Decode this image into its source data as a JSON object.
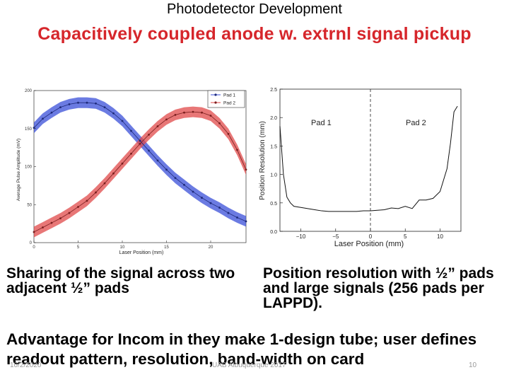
{
  "slide": {
    "header": "Photodetector Development",
    "title": "Capacitively coupled anode w. extrnl signal pickup",
    "caption_left": "Sharing of the signal across two adjacent ½” pads",
    "caption_right": "Position resolution with ½” pads and large signals (256 pads per LAPPD).",
    "bottom_text": "Advantage for Incom in they make 1-design tube; user defines readout pattern, resolution, band-width on card",
    "footer_date": "10/2/2020",
    "footer_center": "UAB Albuquerque 2017",
    "page_number": "10"
  },
  "colors": {
    "title": "#d6262b",
    "pad1": "#3a4fd8",
    "pad2": "#e0494a"
  },
  "chart_data": [
    {
      "type": "line",
      "xlabel": "Laser Position (mm)",
      "ylabel": "Average Pulse Amplitude (mV)",
      "xlim": [
        0,
        24
      ],
      "ylim": [
        0,
        200
      ],
      "xticks": [
        "0",
        "5",
        "10",
        "15",
        "20"
      ],
      "yticks": [
        "0",
        "50",
        "100",
        "150",
        "200"
      ],
      "legend_position": "top-right",
      "grid": false,
      "series": [
        {
          "name": "Pad 1",
          "x": [
            0,
            1,
            2,
            3,
            4,
            5,
            6,
            7,
            8,
            9,
            10,
            11,
            12,
            13,
            14,
            15,
            16,
            17,
            18,
            19,
            20,
            21,
            22,
            23,
            24
          ],
          "y": [
            151,
            163,
            171,
            178,
            182,
            184,
            184,
            183,
            178,
            170,
            160,
            147,
            134,
            121,
            108,
            96,
            85,
            76,
            67,
            59,
            52,
            46,
            39,
            33,
            28
          ]
        },
        {
          "name": "Pad 2",
          "x": [
            0,
            1,
            2,
            3,
            4,
            5,
            6,
            7,
            8,
            9,
            10,
            11,
            12,
            13,
            14,
            15,
            16,
            17,
            18,
            19,
            20,
            21,
            22,
            23,
            24
          ],
          "y": [
            14,
            20,
            26,
            32,
            39,
            47,
            55,
            66,
            78,
            91,
            104,
            117,
            130,
            142,
            153,
            162,
            168,
            171,
            172,
            171,
            167,
            157,
            143,
            122,
            96
          ]
        }
      ]
    },
    {
      "type": "line",
      "xlabel": "Laser Position (mm)",
      "ylabel": "Position Resolution (mm)",
      "xlim": [
        -13,
        13
      ],
      "ylim": [
        0,
        2.5
      ],
      "xticks": [
        "−10",
        "−5",
        "0",
        "5",
        "10"
      ],
      "yticks": [
        "0.0",
        "0.5",
        "1.0",
        "1.5",
        "2.0",
        "2.5"
      ],
      "annotations": [
        "Pad 1",
        "Pad 2"
      ],
      "divider_x": 0,
      "grid": false,
      "series": [
        {
          "x": [
            -13,
            -12.5,
            -12,
            -11.5,
            -11,
            -10,
            -9,
            -8,
            -7,
            -6,
            -5,
            -4,
            -3,
            -2,
            -1,
            0,
            1,
            2,
            3,
            4,
            5,
            6,
            7,
            8,
            9,
            10,
            11,
            11.5,
            12,
            12.5
          ],
          "y": [
            1.85,
            1.0,
            0.6,
            0.5,
            0.44,
            0.42,
            0.4,
            0.38,
            0.36,
            0.35,
            0.35,
            0.35,
            0.35,
            0.35,
            0.36,
            0.36,
            0.37,
            0.38,
            0.41,
            0.4,
            0.44,
            0.4,
            0.55,
            0.55,
            0.58,
            0.7,
            1.1,
            1.55,
            2.1,
            2.2
          ]
        }
      ]
    }
  ]
}
